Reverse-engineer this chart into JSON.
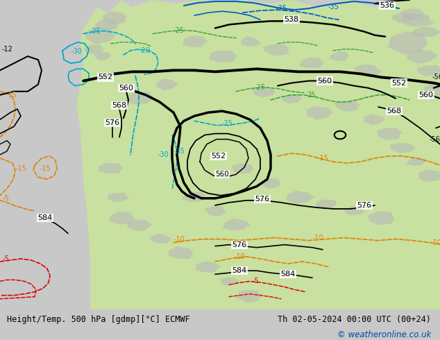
{
  "title_left": "Height/Temp. 500 hPa [gdmp][°C] ECMWF",
  "title_right": "Th 02-05-2024 00:00 UTC (00+24)",
  "copyright": "© weatheronline.co.uk",
  "fig_width": 6.34,
  "fig_height": 4.9,
  "dpi": 100,
  "ocean_color": "#c8c8c8",
  "land_green": "#c8e0a0",
  "land_gray": "#b8b8b8",
  "black": "#000000",
  "orange": "#e08000",
  "red": "#dd0000",
  "cyan": "#00a8c8",
  "blue": "#0060c0",
  "green_temp": "#30a030",
  "white": "#ffffff",
  "footer_bg": "#ffffff",
  "footer_text": "#000000",
  "copyright_color": "#0044aa"
}
